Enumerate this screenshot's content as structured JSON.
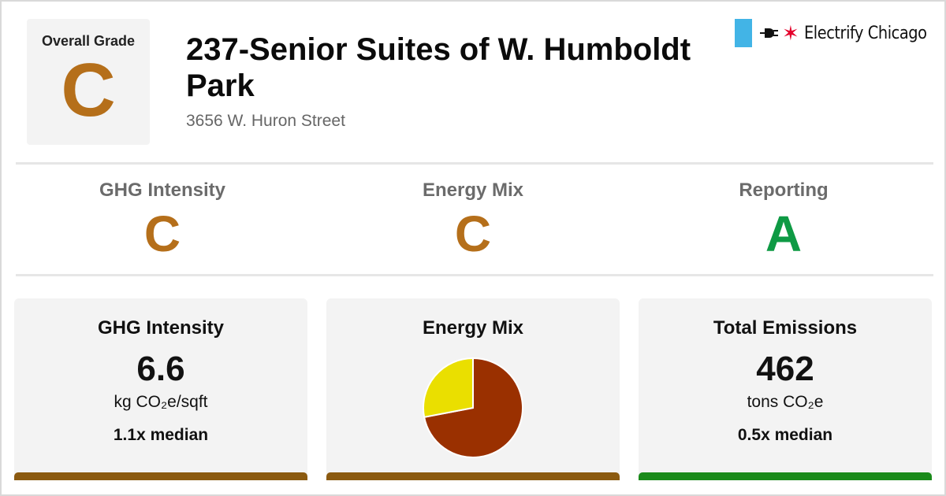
{
  "colors": {
    "grade_c": "#b56f1a",
    "grade_a": "#0e9a44",
    "bar_brown": "#8b5a10",
    "bar_green": "#1a8a1a",
    "pie_primary": "#9a3000",
    "pie_secondary": "#eadf00",
    "flag_blue": "#42b4e6",
    "star_red": "#e4002b"
  },
  "overall": {
    "label": "Overall Grade",
    "grade": "C"
  },
  "building": {
    "title": "237-Senior Suites of W. Humboldt Park",
    "address": "3656 W. Huron Street"
  },
  "logo": {
    "text": "Electrify Chicago",
    "icons": [
      "flag-icon",
      "plug-icon",
      "star-icon"
    ]
  },
  "grades": [
    {
      "label": "GHG Intensity",
      "grade": "C"
    },
    {
      "label": "Energy Mix",
      "grade": "C"
    },
    {
      "label": "Reporting",
      "grade": "A"
    }
  ],
  "panels": {
    "ghg": {
      "title": "GHG Intensity",
      "value": "6.6",
      "unit": "kg CO₂e/sqft",
      "median": "1.1x median"
    },
    "mix": {
      "title": "Energy Mix",
      "share_primary": 0.72,
      "share_secondary": 0.28
    },
    "emissions": {
      "title": "Total Emissions",
      "value": "462",
      "unit": "tons CO₂e",
      "median": "0.5x median"
    }
  }
}
